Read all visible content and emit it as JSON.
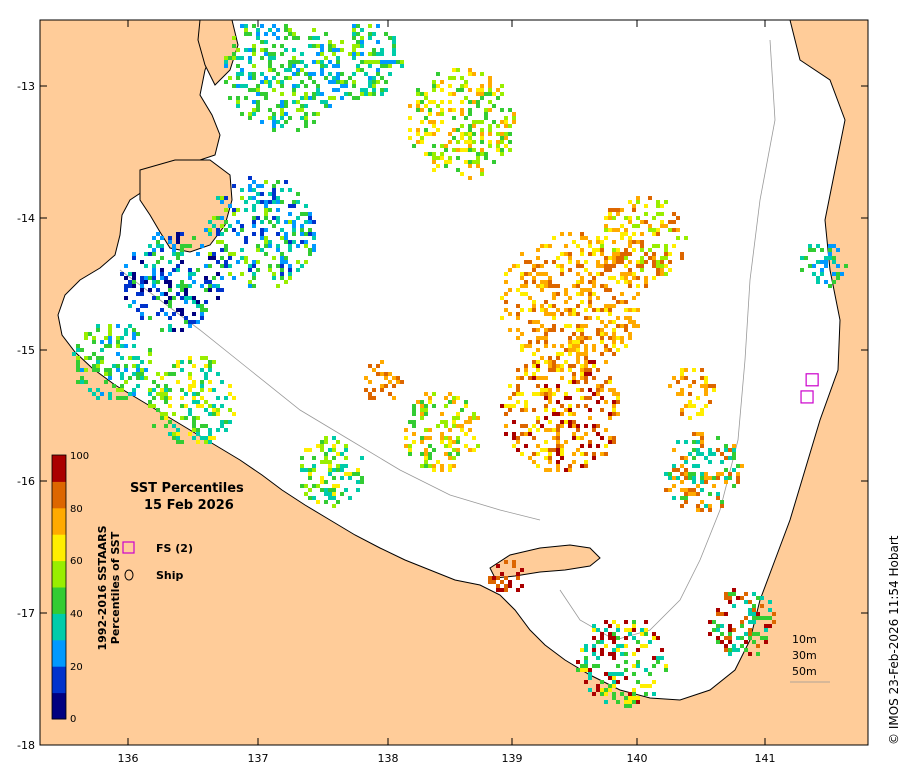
{
  "map": {
    "title_line1": "SST Percentiles",
    "title_line2": "15 Feb 2026",
    "colorbar_axis_label_line1": "1992-2016 SSTAARS",
    "colorbar_axis_label_line2": "Percentiles of SST",
    "colorbar_ticks": [
      "0",
      "20",
      "40",
      "60",
      "80",
      "100"
    ],
    "colorbar_colors": [
      "#000080",
      "#0033cc",
      "#0099ff",
      "#00ccaa",
      "#33cc33",
      "#99ee00",
      "#ffee00",
      "#ffaa00",
      "#dd6600",
      "#aa0000"
    ],
    "x_ticks": [
      "136",
      "137",
      "138",
      "139",
      "140",
      "141"
    ],
    "y_ticks": [
      "-13",
      "-14",
      "-15",
      "-16",
      "-17",
      "-18"
    ],
    "legend": {
      "fs_label": "FS (2)",
      "ship_label": "Ship"
    },
    "depth_contours": [
      "10m",
      "30m",
      "50m"
    ],
    "credit": "© IMOS 23-Feb-2026 11:54 Hobart",
    "land_color": "#ffcc99",
    "sea_color": "#ffffff",
    "fs_marker_color": "#cc00cc",
    "fs_stations": [
      {
        "lon": 141.37,
        "lat": -15.23
      },
      {
        "lon": 141.33,
        "lat": -15.36
      }
    ]
  }
}
